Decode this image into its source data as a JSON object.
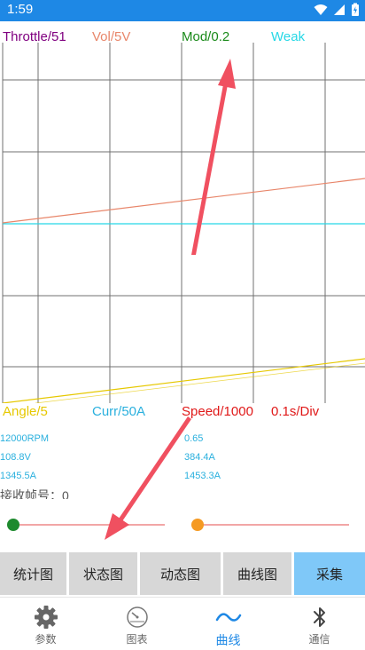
{
  "status_bar": {
    "time": "1:59"
  },
  "legend_top": {
    "throttle": "Throttle/51",
    "vol": "Vol/5V",
    "mod": "Mod/0.2",
    "weak": "Weak"
  },
  "legend_bottom": {
    "angle": "Angle/5",
    "curr": "Curr/50A",
    "speed": "Speed/1000",
    "div": "0.1s/Div"
  },
  "readouts": {
    "left": [
      "12000RPM",
      "108.8V",
      "1345.5A"
    ],
    "right": [
      "0.65",
      "384.4A",
      "1453.3A"
    ]
  },
  "frame_count": "接收帧号：0",
  "sliders": {
    "left": {
      "color": "#1e8a2e",
      "value": 0.0
    },
    "right": {
      "color": "#f59a23",
      "value": 0.0
    }
  },
  "tabs": [
    {
      "label": "统计图",
      "active": false
    },
    {
      "label": "状态图",
      "active": false
    },
    {
      "label": "动态图",
      "active": false
    },
    {
      "label": "曲线图",
      "active": false
    },
    {
      "label": "采集",
      "active": true
    }
  ],
  "bottom_nav": [
    {
      "label": "参数",
      "icon": "gear-icon",
      "active": false
    },
    {
      "label": "图表",
      "icon": "gauge-icon",
      "active": false
    },
    {
      "label": "曲线",
      "icon": "wave-icon",
      "active": true
    },
    {
      "label": "通信",
      "icon": "bluetooth-icon",
      "active": false
    }
  ],
  "colors": {
    "throttle": "#800080",
    "vol": "#e8866a",
    "mod": "#1a8a1a",
    "weak": "#26d8e6",
    "angle": "#e6c800",
    "curr": "#2ab0de",
    "speed": "#e01818",
    "accent": "#1e88e5",
    "arrow": "#f05060"
  }
}
